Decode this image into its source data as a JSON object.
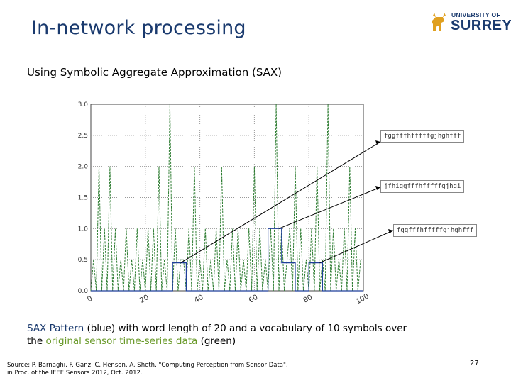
{
  "slide": {
    "title": "In-network processing",
    "subtitle": "Using Symbolic Aggregate Approximation (SAX)",
    "logo": {
      "line1": "UNIVERSITY OF",
      "line2": "SURREY",
      "icon": "stag-crest-icon",
      "color": "#1a3a6e"
    },
    "caption": {
      "part1": "SAX Pattern",
      "part2": " (blue) with word length of 20 and a vocabulary of 10 symbols over the ",
      "part3": "original sensor time-series data",
      "part4": " (green)"
    },
    "source_line1": "Source: P. Barnaghi, F. Ganz, C. Henson, A. Sheth, \"Computing Perception from Sensor Data\",",
    "source_line2": "in Proc. of the IEEE Sensors 2012, Oct. 2012.",
    "page_number": "27"
  },
  "sax_labels": [
    "fggfffhfffffgjhghfff",
    "jfhiggfffhfffffgjhgi",
    "fggfffhfffffgjhghfff"
  ],
  "colors": {
    "title": "#1a3a6e",
    "raw_series": "#2e7d32",
    "sax_series": "#1f3f9a",
    "grid": "#999999",
    "callout": "#000000"
  },
  "chart_data": {
    "type": "line",
    "title": "",
    "xlabel": "",
    "ylabel": "",
    "xlim": [
      0,
      100
    ],
    "ylim": [
      0,
      3.0
    ],
    "x_ticks": [
      "0",
      "20",
      "40",
      "60",
      "80",
      "100"
    ],
    "y_ticks": [
      "0.0",
      "0.5",
      "1.0",
      "1.5",
      "2.0",
      "2.5",
      "3.0"
    ],
    "grid": true,
    "series": [
      {
        "color": "#2e7d32",
        "x": [
          0,
          1,
          2,
          3,
          4,
          5,
          6,
          7,
          8,
          9,
          10,
          11,
          12,
          13,
          14,
          15,
          16,
          17,
          18,
          19,
          20,
          21,
          22,
          23,
          24,
          25,
          26,
          27,
          28,
          29,
          30,
          31,
          32,
          33,
          34,
          35,
          36,
          37,
          38,
          39,
          40,
          41,
          42,
          43,
          44,
          45,
          46,
          47,
          48,
          49,
          50,
          51,
          52,
          53,
          54,
          55,
          56,
          57,
          58,
          59,
          60,
          61,
          62,
          63,
          64,
          65,
          66,
          67,
          68,
          69,
          70,
          71,
          72,
          73,
          74,
          75,
          76,
          77,
          78,
          79,
          80,
          81,
          82,
          83,
          84,
          85,
          86,
          87,
          88,
          89,
          90,
          91,
          92,
          93,
          94,
          95,
          96,
          97,
          98,
          99
        ],
        "y": [
          0,
          0.5,
          0,
          2,
          0,
          1,
          0,
          2,
          0,
          1,
          0,
          0.5,
          0,
          1,
          0,
          0.5,
          0,
          1,
          0,
          0.5,
          0,
          1,
          0,
          1,
          0,
          2,
          0,
          0.5,
          0,
          3,
          0,
          1,
          0,
          0.5,
          0.5,
          0,
          1,
          0,
          2,
          0,
          0.5,
          0,
          1,
          0,
          0.5,
          0,
          1,
          0,
          2,
          0,
          0.5,
          0,
          1,
          0,
          1,
          0,
          0.5,
          0,
          1,
          0,
          2,
          0,
          1,
          0,
          0.5,
          0,
          1,
          0,
          3,
          0,
          1,
          0,
          0.5,
          1,
          0,
          2,
          0,
          1,
          0,
          0.5,
          0,
          1,
          0,
          2,
          0,
          0.5,
          0,
          3,
          0,
          1,
          0,
          0.5,
          0,
          1,
          0,
          2,
          0,
          1,
          0,
          0.5
        ]
      },
      {
        "color": "#1f3f9a",
        "x": [
          0,
          5,
          5,
          10,
          10,
          15,
          15,
          20,
          20,
          25,
          25,
          30,
          30,
          35,
          35,
          40,
          40,
          45,
          45,
          50,
          50,
          55,
          55,
          60,
          60,
          65,
          65,
          70,
          70,
          75,
          75,
          80,
          80,
          85,
          85,
          90,
          90,
          95,
          95,
          100
        ],
        "y": [
          0,
          0,
          0,
          0,
          0,
          0,
          0,
          0,
          0,
          0,
          0,
          0,
          0.45,
          0.45,
          0,
          0,
          0,
          0,
          0,
          0,
          0,
          0,
          0,
          0,
          0,
          0,
          1.0,
          1.0,
          0.45,
          0.45,
          0,
          0,
          0.45,
          0.45,
          0,
          0,
          0,
          0,
          0,
          0
        ]
      }
    ]
  }
}
